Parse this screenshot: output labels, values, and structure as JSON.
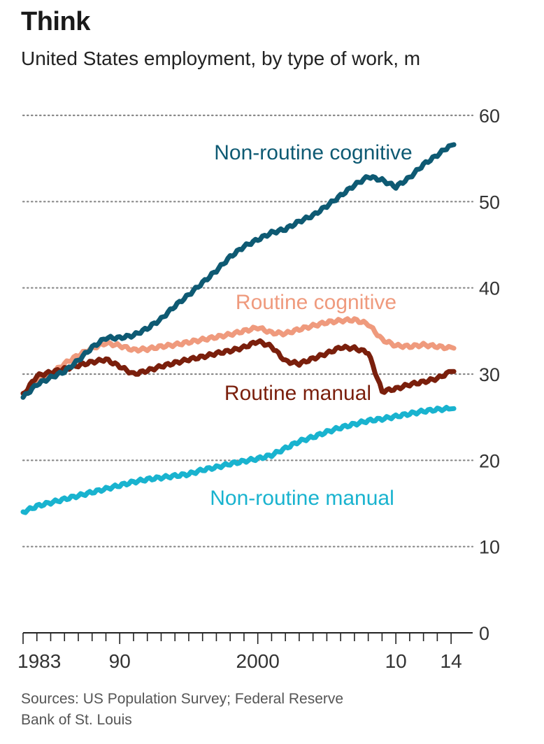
{
  "header": {
    "title": "Think",
    "subtitle": "United States employment, by type of work, m"
  },
  "footer": {
    "source_line1": "Sources: US Population Survey; Federal Reserve",
    "source_line2": "Bank of St. Louis"
  },
  "colors": {
    "non_routine_cognitive": "#0e5a73",
    "routine_cognitive": "#ef9a7d",
    "routine_manual": "#7a1f0c",
    "non_routine_manual": "#19b3cf",
    "grid": "#888888",
    "axis_text": "#333333"
  },
  "chart_data": {
    "type": "line",
    "title": "Think",
    "subtitle": "United States employment, by type of work, m",
    "xlabel": "",
    "ylabel": "m",
    "xlim": [
      1983,
      2014.5
    ],
    "ylim": [
      0,
      60
    ],
    "y_ticks": [
      0,
      10,
      20,
      30,
      40,
      50,
      60
    ],
    "x_tick_labels": [
      {
        "x": 1983,
        "label": "1983"
      },
      {
        "x": 1990,
        "label": "90"
      },
      {
        "x": 2000,
        "label": "2000"
      },
      {
        "x": 2010,
        "label": "10"
      },
      {
        "x": 2014,
        "label": "14"
      }
    ],
    "grid": "horizontal dotted",
    "y_axis_side": "right",
    "x": [
      1983,
      1984,
      1985,
      1986,
      1987,
      1988,
      1989,
      1990,
      1991,
      1992,
      1993,
      1994,
      1995,
      1996,
      1997,
      1998,
      1999,
      2000,
      2001,
      2002,
      2003,
      2004,
      2005,
      2006,
      2007,
      2008,
      2009,
      2010,
      2011,
      2012,
      2013,
      2014
    ],
    "series": [
      {
        "name": "Non-routine cognitive",
        "label_pos": "top",
        "values": [
          27.3,
          28.8,
          29.6,
          30.3,
          31.6,
          33.1,
          34.2,
          34.2,
          34.5,
          35.3,
          36.4,
          37.9,
          39.2,
          40.6,
          42.0,
          43.6,
          44.8,
          45.6,
          46.4,
          46.8,
          47.7,
          48.4,
          49.5,
          50.7,
          51.9,
          52.9,
          52.5,
          51.7,
          52.8,
          54.3,
          55.4,
          56.6
        ]
      },
      {
        "name": "Routine cognitive",
        "label_pos": "middle",
        "values": [
          27.6,
          29.0,
          30.0,
          31.2,
          32.2,
          33.0,
          33.6,
          33.3,
          32.8,
          32.9,
          33.2,
          33.4,
          33.7,
          34.0,
          34.3,
          34.6,
          35.0,
          35.4,
          34.8,
          34.7,
          35.2,
          35.6,
          36.0,
          36.2,
          36.3,
          35.8,
          34.0,
          33.3,
          33.2,
          33.4,
          33.2,
          33.0
        ]
      },
      {
        "name": "Routine manual",
        "label_pos": "middle",
        "values": [
          27.6,
          29.8,
          30.2,
          30.6,
          31.0,
          31.4,
          31.7,
          30.9,
          30.0,
          30.4,
          30.9,
          31.3,
          31.7,
          32.0,
          32.4,
          32.7,
          33.1,
          33.8,
          33.2,
          31.5,
          31.2,
          31.8,
          32.4,
          33.1,
          33.0,
          32.5,
          28.0,
          28.3,
          28.8,
          29.1,
          29.5,
          30.3
        ]
      },
      {
        "name": "Non-routine manual",
        "label_pos": "bottom",
        "values": [
          14.0,
          14.7,
          15.1,
          15.5,
          15.9,
          16.3,
          16.7,
          17.1,
          17.5,
          17.8,
          18.0,
          18.2,
          18.4,
          18.9,
          19.2,
          19.6,
          19.9,
          20.2,
          20.6,
          21.4,
          22.2,
          22.7,
          23.3,
          23.8,
          24.2,
          24.6,
          24.8,
          25.1,
          25.4,
          25.7,
          25.9,
          26.0
        ]
      }
    ]
  }
}
